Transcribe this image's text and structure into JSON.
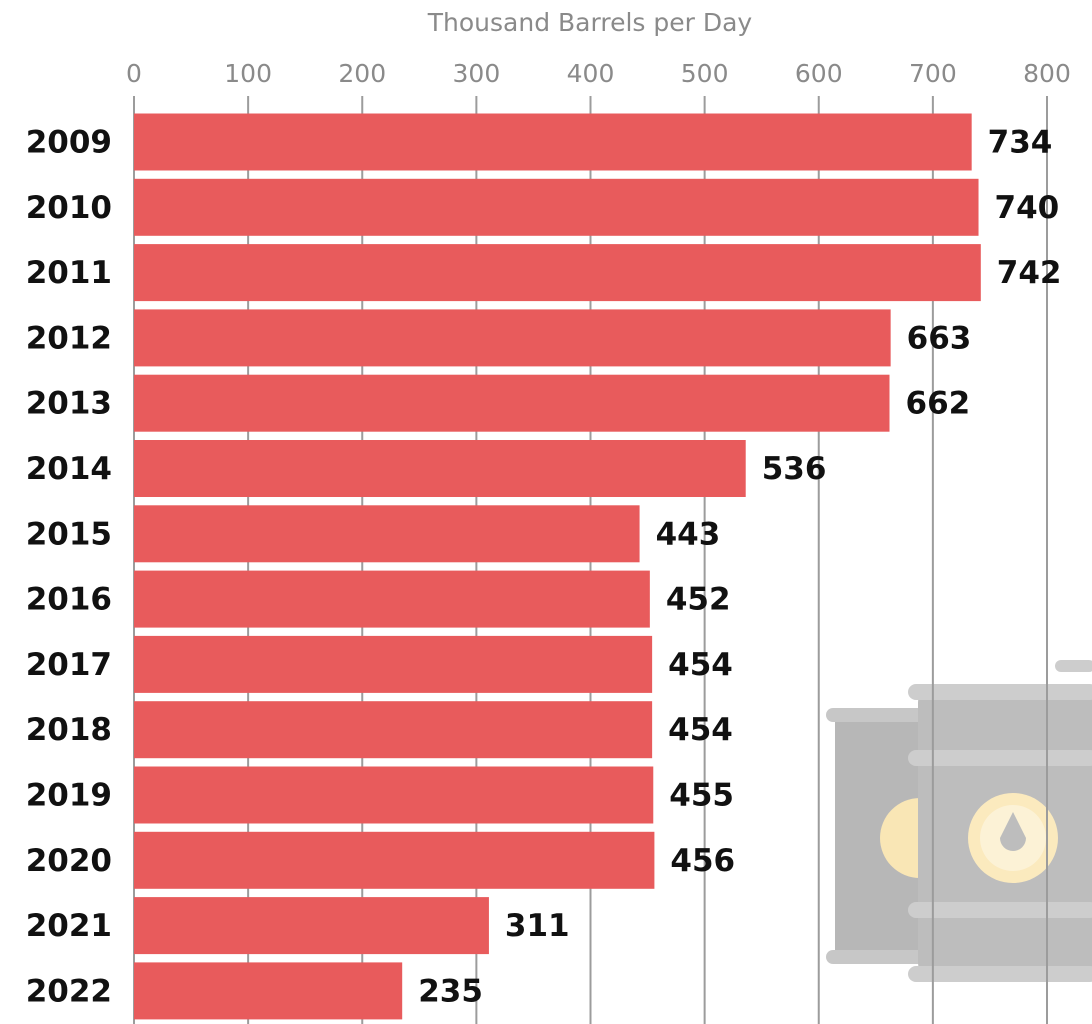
{
  "chart_data": {
    "type": "bar",
    "orientation": "horizontal",
    "xlabel": "Thousand Barrels per Day",
    "categories": [
      "2009",
      "2010",
      "2011",
      "2012",
      "2013",
      "2014",
      "2015",
      "2016",
      "2017",
      "2018",
      "2019",
      "2020",
      "2021",
      "2022"
    ],
    "values": [
      734,
      740,
      742,
      663,
      662,
      536,
      443,
      452,
      454,
      454,
      455,
      456,
      311,
      235
    ],
    "color": "#e85b5c",
    "xlim": [
      0,
      800
    ],
    "xticks": [
      0,
      100,
      200,
      300,
      400,
      500,
      600,
      700,
      800
    ],
    "grid": true
  }
}
